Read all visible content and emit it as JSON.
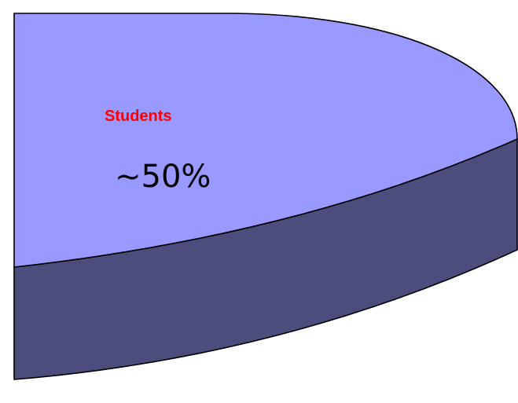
{
  "chart_data": {
    "type": "pie",
    "title": "",
    "slices": [
      {
        "label": "Students",
        "value": 50,
        "value_label": "~50%"
      }
    ],
    "colors": {
      "top_face": "#9999ff",
      "side_face": "#4d4d7d",
      "outline": "#000000",
      "label": "#ff0000"
    },
    "style": "3d"
  }
}
